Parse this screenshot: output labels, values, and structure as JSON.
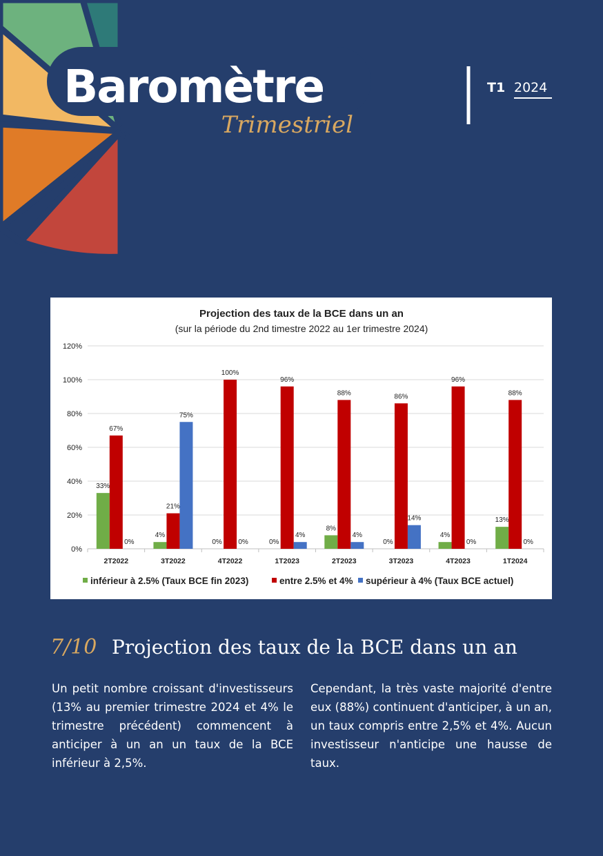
{
  "header": {
    "title": "Baromètre",
    "subtitle": "Trimestriel",
    "quarter": "T1",
    "year": "2024"
  },
  "chart_data": {
    "type": "bar",
    "title": "Projection des taux de la BCE dans un an",
    "subtitle": "(sur la période du 2nd timestre 2022 au 1er trimestre 2024)",
    "categories": [
      "2T2022",
      "3T2022",
      "4T2022",
      "1T2023",
      "2T2023",
      "3T2023",
      "4T2023",
      "1T2024"
    ],
    "series": [
      {
        "name": "inférieur à 2.5% (Taux BCE fin 2023)",
        "color": "#70ad47",
        "values": [
          33,
          4,
          0,
          0,
          8,
          0,
          4,
          13
        ],
        "value_labels": [
          "33%",
          "4%",
          "0%",
          "0%",
          "8%",
          "0%",
          "4%",
          "13%"
        ]
      },
      {
        "name": "entre 2.5% et 4%",
        "color": "#c00000",
        "values": [
          67,
          21,
          100,
          96,
          88,
          86,
          96,
          88
        ],
        "value_labels": [
          "67%",
          "21%",
          "100%",
          "96%",
          "88%",
          "86%",
          "96%",
          "88%"
        ]
      },
      {
        "name": "supérieur à 4% (Taux BCE actuel)",
        "color": "#4472c4",
        "values": [
          0,
          75,
          0,
          4,
          4,
          14,
          0,
          0
        ],
        "value_labels": [
          "0%",
          "75%",
          "0%",
          "4%",
          "4%",
          "14%",
          "0%",
          "0%"
        ]
      }
    ],
    "ylim": [
      0,
      120
    ],
    "yticks": [
      {
        "value": 0,
        "label": "0%"
      },
      {
        "value": 20,
        "label": "20%"
      },
      {
        "value": 40,
        "label": "40%"
      },
      {
        "value": 60,
        "label": "60%"
      },
      {
        "value": 80,
        "label": "80%"
      },
      {
        "value": 100,
        "label": "100%"
      },
      {
        "value": 120,
        "label": "120%"
      }
    ],
    "grid": true,
    "legend": "bottom"
  },
  "section": {
    "number": "7/10",
    "title": "Projection des taux de la BCE dans un an"
  },
  "paragraphs": [
    "Un petit nombre croissant d'investisseurs (13% au premier trimestre 2024 et 4% le trimestre précédent) commencent à anticiper à un an un taux de la BCE inférieur à 2,5%.",
    "Cependant, la très vaste majorité d'entre eux (88%) continuent d'anticiper, à un an, un taux compris entre 2,5% et 4%. Aucun investisseur n'anticipe une hausse de taux."
  ]
}
